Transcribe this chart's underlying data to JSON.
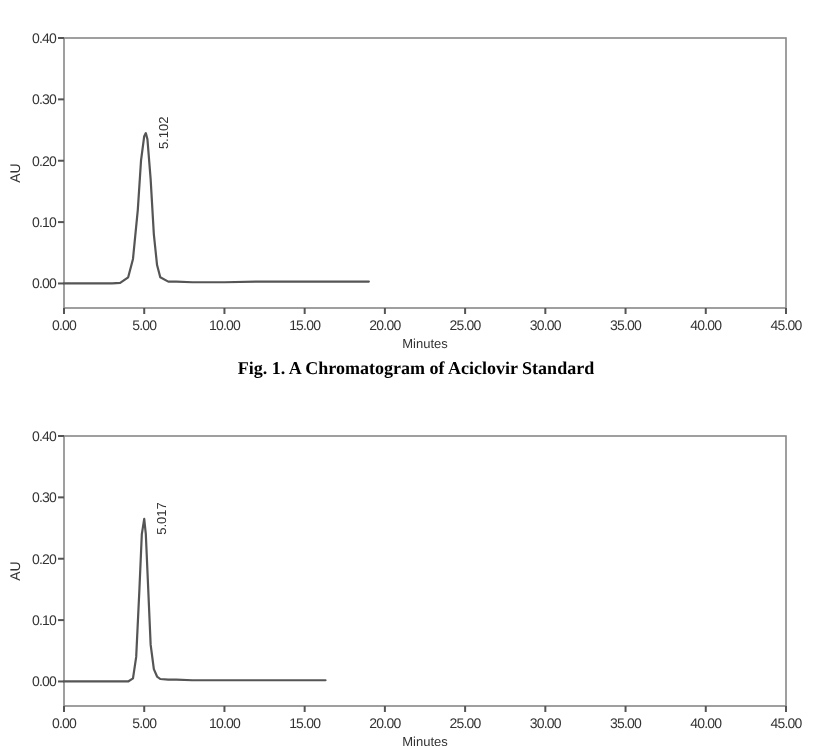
{
  "chart_data": [
    {
      "type": "line",
      "xlabel": "Minutes",
      "ylabel": "AU",
      "xlim": [
        0,
        45
      ],
      "ylim": [
        -0.04,
        0.4
      ],
      "xticks": [
        {
          "value": 0,
          "label": "0.00"
        },
        {
          "value": 5,
          "label": "5.00"
        },
        {
          "value": 10,
          "label": "10.00"
        },
        {
          "value": 15,
          "label": "15.00"
        },
        {
          "value": 20,
          "label": "20.00"
        },
        {
          "value": 25,
          "label": "25.00"
        },
        {
          "value": 30,
          "label": "30.00"
        },
        {
          "value": 35,
          "label": "35.00"
        },
        {
          "value": 40,
          "label": "40.00"
        },
        {
          "value": 45,
          "label": "45.00"
        }
      ],
      "yticks": [
        {
          "value": 0,
          "label": "0.00"
        },
        {
          "value": 0.1,
          "label": "0.10"
        },
        {
          "value": 0.2,
          "label": "0.20"
        },
        {
          "value": 0.3,
          "label": "0.30"
        },
        {
          "value": 0.4,
          "label": "0.40"
        }
      ],
      "series": [
        {
          "color": "#555555",
          "x": [
            0,
            2,
            3,
            3.5,
            4,
            4.3,
            4.6,
            4.8,
            5.0,
            5.1,
            5.2,
            5.4,
            5.6,
            5.8,
            6.0,
            6.5,
            7,
            8,
            10,
            12,
            15,
            19
          ],
          "values": [
            0,
            0,
            0,
            0.001,
            0.01,
            0.04,
            0.12,
            0.2,
            0.24,
            0.245,
            0.235,
            0.17,
            0.08,
            0.03,
            0.01,
            0.003,
            0.003,
            0.002,
            0.002,
            0.003,
            0.003,
            0.003
          ]
        }
      ],
      "annotations": [
        {
          "text": "5.102",
          "x": 5.102,
          "y": 0.245
        },
        "Fig. 1. A Chromatogram of Aciclovir Standard"
      ]
    },
    {
      "type": "line",
      "xlabel": "Minutes",
      "ylabel": "AU",
      "xlim": [
        0,
        45
      ],
      "ylim": [
        -0.04,
        0.4
      ],
      "xticks": [
        {
          "value": 0,
          "label": "0.00"
        },
        {
          "value": 5,
          "label": "5.00"
        },
        {
          "value": 10,
          "label": "10.00"
        },
        {
          "value": 15,
          "label": "15.00"
        },
        {
          "value": 20,
          "label": "20.00"
        },
        {
          "value": 25,
          "label": "25.00"
        },
        {
          "value": 30,
          "label": "30.00"
        },
        {
          "value": 35,
          "label": "35.00"
        },
        {
          "value": 40,
          "label": "40.00"
        },
        {
          "value": 45,
          "label": "45.00"
        }
      ],
      "yticks": [
        {
          "value": 0,
          "label": "0.00"
        },
        {
          "value": 0.1,
          "label": "0.10"
        },
        {
          "value": 0.2,
          "label": "0.20"
        },
        {
          "value": 0.3,
          "label": "0.30"
        },
        {
          "value": 0.4,
          "label": "0.40"
        }
      ],
      "series": [
        {
          "color": "#555555",
          "x": [
            0,
            2,
            3,
            4,
            4.3,
            4.5,
            4.7,
            4.85,
            5.0,
            5.1,
            5.25,
            5.4,
            5.6,
            5.8,
            6.0,
            6.5,
            7,
            8,
            10,
            12,
            16.3
          ],
          "values": [
            0,
            0,
            0,
            0,
            0.005,
            0.04,
            0.15,
            0.24,
            0.265,
            0.24,
            0.15,
            0.06,
            0.02,
            0.008,
            0.004,
            0.003,
            0.003,
            0.002,
            0.002,
            0.002,
            0.002
          ]
        }
      ],
      "annotations": [
        {
          "text": "5.017",
          "x": 5.017,
          "y": 0.265
        }
      ]
    }
  ]
}
